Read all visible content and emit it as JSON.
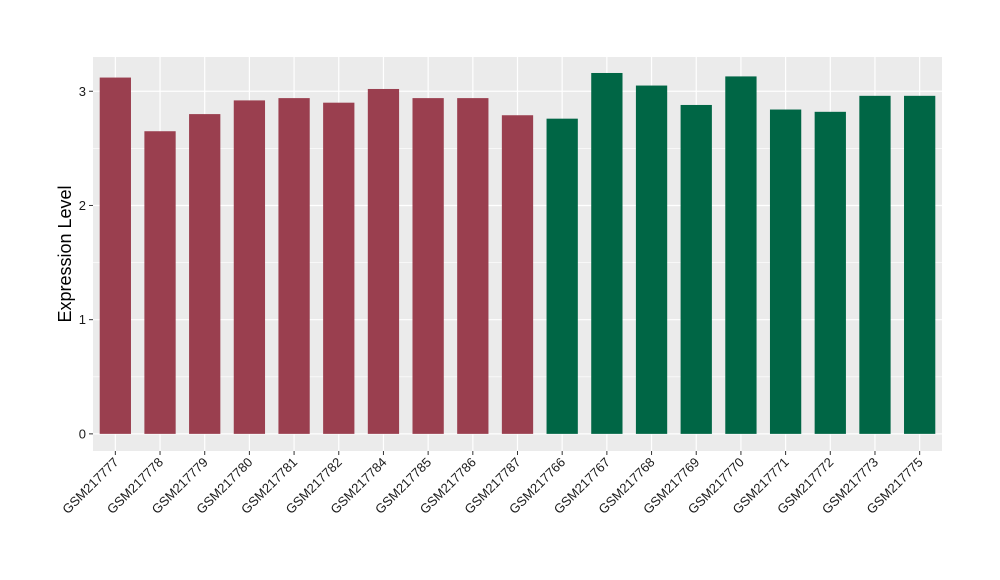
{
  "chart_data": {
    "type": "bar",
    "title": "",
    "xlabel": "",
    "ylabel": "Expression Level",
    "ylim": [
      -0.15,
      3.3
    ],
    "yticks": [
      0,
      1,
      2,
      3
    ],
    "grid": true,
    "legend": "none",
    "colors": {
      "panel_background": "#ebebeb",
      "grid": "#ffffff",
      "group_a": "#9a3f4f",
      "group_b": "#006645"
    },
    "categories": [
      "GSM217777",
      "GSM217778",
      "GSM217779",
      "GSM217780",
      "GSM217781",
      "GSM217782",
      "GSM217784",
      "GSM217785",
      "GSM217786",
      "GSM217787",
      "GSM217766",
      "GSM217767",
      "GSM217768",
      "GSM217769",
      "GSM217770",
      "GSM217771",
      "GSM217772",
      "GSM217773",
      "GSM217775"
    ],
    "values": [
      3.12,
      2.65,
      2.8,
      2.92,
      2.94,
      2.9,
      3.02,
      2.94,
      2.94,
      2.79,
      2.76,
      3.16,
      3.05,
      2.88,
      3.13,
      2.84,
      2.82,
      2.96,
      2.96
    ],
    "groups": [
      "a",
      "a",
      "a",
      "a",
      "a",
      "a",
      "a",
      "a",
      "a",
      "a",
      "b",
      "b",
      "b",
      "b",
      "b",
      "b",
      "b",
      "b",
      "b"
    ]
  }
}
